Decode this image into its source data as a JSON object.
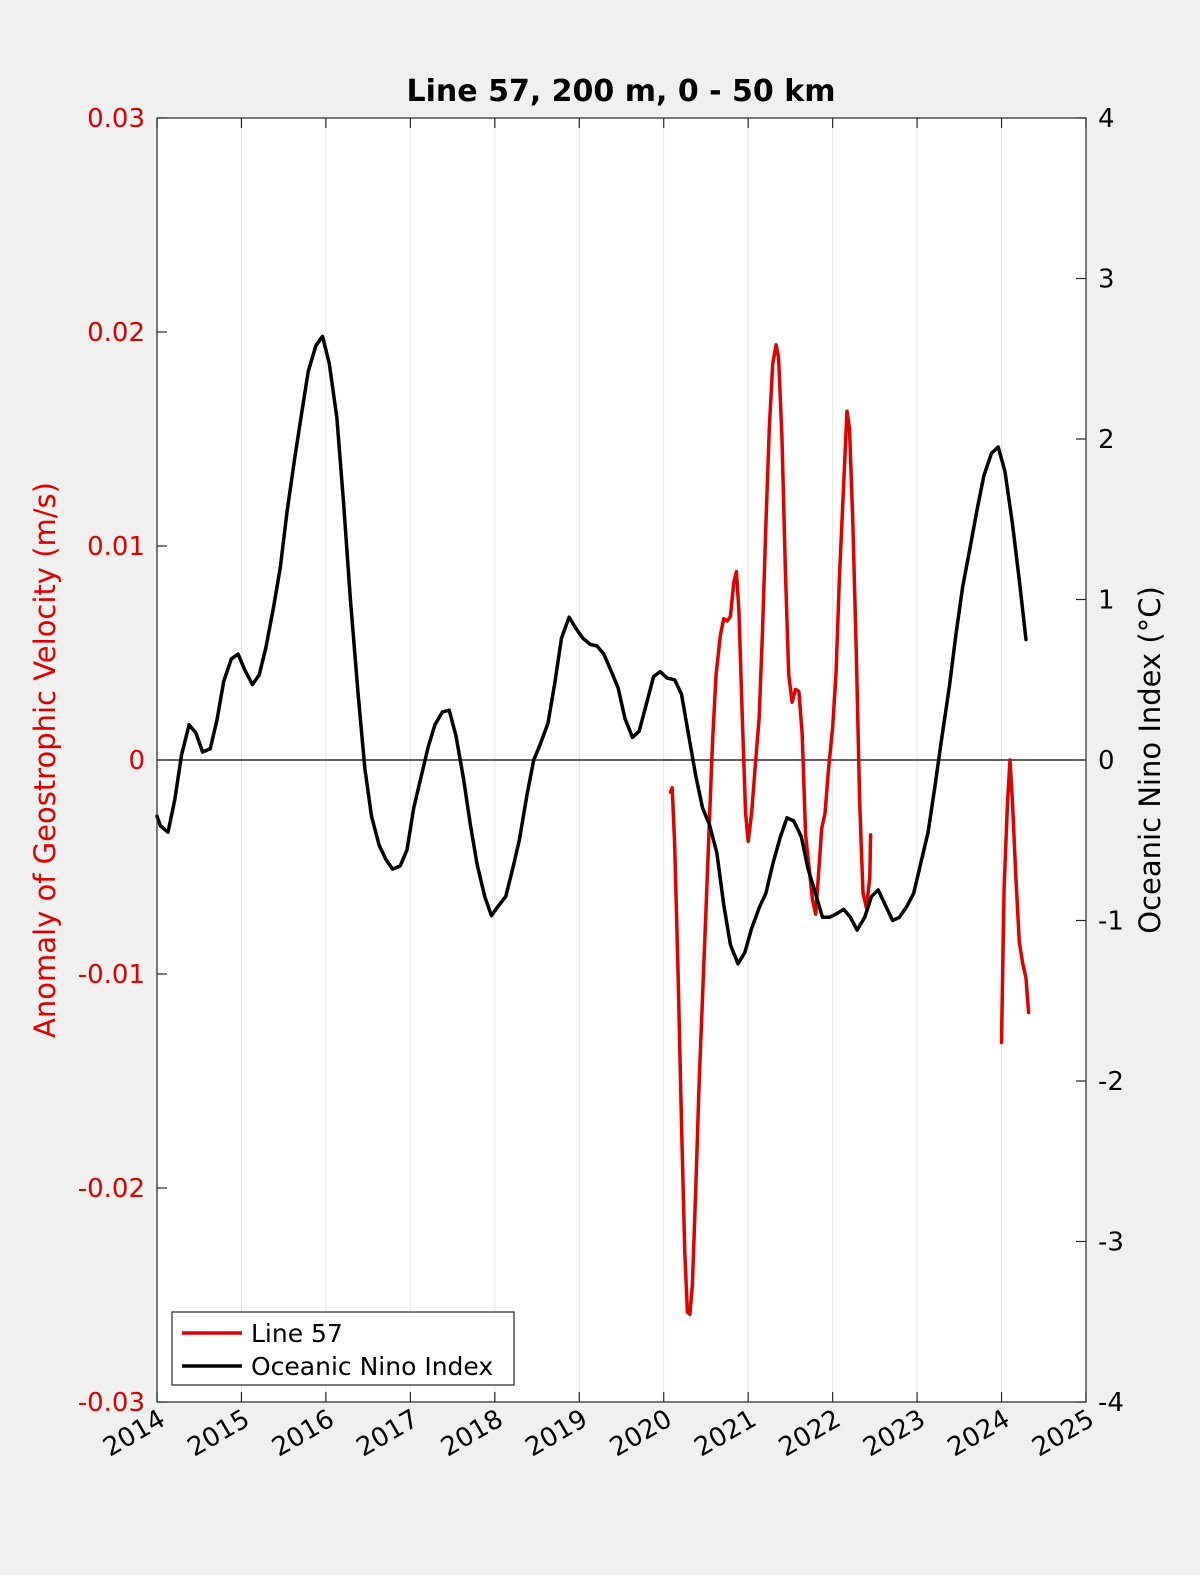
{
  "chart_data": {
    "type": "line",
    "title": "Line 57, 200 m, 0 - 50 km",
    "ylabel_left": "Anomaly of Geostrophic Velocity (m/s)",
    "ylabel_right": "Oceanic Nino Index (°C)",
    "xlim": [
      2014,
      2025
    ],
    "ylim_left": [
      -0.03,
      0.03
    ],
    "ylim_right": [
      -4,
      4
    ],
    "x_ticks": [
      "2014",
      "2015",
      "2016",
      "2017",
      "2018",
      "2019",
      "2020",
      "2021",
      "2022",
      "2023",
      "2024",
      "2025"
    ],
    "y_left_ticks": [
      "0.03",
      "0.02",
      "0.01",
      "0",
      "-0.01",
      "-0.02",
      "-0.03"
    ],
    "y_right_ticks": [
      "4",
      "3",
      "2",
      "1",
      "0",
      "-1",
      "-2",
      "-3",
      "-4"
    ],
    "grid": "vertical",
    "zero_line": true,
    "legend_position": "bottom-left",
    "colors": {
      "line57": "#e00000",
      "oni": "#000000",
      "left_axis": "#e00000",
      "right_axis": "#000000"
    },
    "series": [
      {
        "name": "Line 57",
        "axis": "left",
        "segments": [
          [
            [
              2020.08,
              -0.0015
            ],
            [
              2020.1,
              -0.0013
            ],
            [
              2020.13,
              -0.004
            ],
            [
              2020.17,
              -0.01
            ],
            [
              2020.21,
              -0.017
            ],
            [
              2020.25,
              -0.023
            ],
            [
              2020.28,
              -0.0258
            ],
            [
              2020.31,
              -0.0259
            ],
            [
              2020.34,
              -0.0245
            ],
            [
              2020.38,
              -0.02
            ],
            [
              2020.42,
              -0.015
            ],
            [
              2020.46,
              -0.011
            ],
            [
              2020.5,
              -0.007
            ],
            [
              2020.54,
              -0.003
            ],
            [
              2020.58,
              0.001
            ],
            [
              2020.62,
              0.004
            ],
            [
              2020.67,
              0.0058
            ],
            [
              2020.71,
              0.0066
            ],
            [
              2020.75,
              0.0065
            ],
            [
              2020.79,
              0.0067
            ],
            [
              2020.83,
              0.0083
            ],
            [
              2020.86,
              0.0088
            ],
            [
              2020.89,
              0.007
            ],
            [
              2020.93,
              0.002
            ],
            [
              2020.97,
              -0.0025
            ],
            [
              2021.0,
              -0.0038
            ],
            [
              2021.04,
              -0.0025
            ],
            [
              2021.08,
              -0.0005
            ],
            [
              2021.13,
              0.002
            ],
            [
              2021.17,
              0.006
            ],
            [
              2021.21,
              0.011
            ],
            [
              2021.25,
              0.0155
            ],
            [
              2021.29,
              0.0185
            ],
            [
              2021.33,
              0.0194
            ],
            [
              2021.36,
              0.0188
            ],
            [
              2021.4,
              0.015
            ],
            [
              2021.44,
              0.009
            ],
            [
              2021.48,
              0.004
            ],
            [
              2021.52,
              0.0027
            ],
            [
              2021.56,
              0.0033
            ],
            [
              2021.6,
              0.0032
            ],
            [
              2021.64,
              0.0012
            ],
            [
              2021.68,
              -0.0035
            ],
            [
              2021.72,
              -0.005
            ],
            [
              2021.76,
              -0.0065
            ],
            [
              2021.8,
              -0.0072
            ],
            [
              2021.83,
              -0.0055
            ],
            [
              2021.87,
              -0.0032
            ],
            [
              2021.91,
              -0.0025
            ],
            [
              2021.95,
              -0.0005
            ],
            [
              2022.0,
              0.0015
            ],
            [
              2022.04,
              0.004
            ],
            [
              2022.08,
              0.0085
            ],
            [
              2022.13,
              0.0128
            ],
            [
              2022.17,
              0.0163
            ],
            [
              2022.2,
              0.0155
            ],
            [
              2022.24,
              0.011
            ],
            [
              2022.28,
              0.005
            ],
            [
              2022.32,
              -0.002
            ],
            [
              2022.36,
              -0.0062
            ],
            [
              2022.4,
              -0.0069
            ],
            [
              2022.44,
              -0.0055
            ],
            [
              2022.45,
              -0.0035
            ]
          ],
          [
            [
              2024.0,
              -0.0132
            ],
            [
              2024.03,
              -0.006
            ],
            [
              2024.07,
              -0.002
            ],
            [
              2024.1,
              0.0
            ],
            [
              2024.13,
              -0.002
            ],
            [
              2024.17,
              -0.0055
            ],
            [
              2024.21,
              -0.0085
            ],
            [
              2024.25,
              -0.0095
            ],
            [
              2024.29,
              -0.0102
            ],
            [
              2024.32,
              -0.0118
            ]
          ]
        ]
      },
      {
        "name": "Oceanic Nino Index",
        "axis": "right",
        "segments": [
          [
            [
              2014.0,
              -0.35
            ],
            [
              2014.04,
              -0.41
            ],
            [
              2014.13,
              -0.45
            ],
            [
              2014.21,
              -0.25
            ],
            [
              2014.29,
              0.03
            ],
            [
              2014.38,
              0.22
            ],
            [
              2014.46,
              0.17
            ],
            [
              2014.54,
              0.05
            ],
            [
              2014.63,
              0.07
            ],
            [
              2014.71,
              0.25
            ],
            [
              2014.79,
              0.49
            ],
            [
              2014.88,
              0.63
            ],
            [
              2014.96,
              0.66
            ],
            [
              2015.04,
              0.56
            ],
            [
              2015.13,
              0.47
            ],
            [
              2015.21,
              0.53
            ],
            [
              2015.29,
              0.7
            ],
            [
              2015.38,
              0.95
            ],
            [
              2015.46,
              1.2
            ],
            [
              2015.54,
              1.55
            ],
            [
              2015.63,
              1.88
            ],
            [
              2015.71,
              2.15
            ],
            [
              2015.79,
              2.42
            ],
            [
              2015.88,
              2.58
            ],
            [
              2015.96,
              2.64
            ],
            [
              2016.04,
              2.47
            ],
            [
              2016.13,
              2.13
            ],
            [
              2016.21,
              1.6
            ],
            [
              2016.29,
              1.0
            ],
            [
              2016.38,
              0.42
            ],
            [
              2016.46,
              -0.05
            ],
            [
              2016.54,
              -0.35
            ],
            [
              2016.63,
              -0.53
            ],
            [
              2016.71,
              -0.62
            ],
            [
              2016.79,
              -0.68
            ],
            [
              2016.88,
              -0.66
            ],
            [
              2016.96,
              -0.56
            ],
            [
              2017.04,
              -0.3
            ],
            [
              2017.13,
              -0.1
            ],
            [
              2017.21,
              0.08
            ],
            [
              2017.29,
              0.22
            ],
            [
              2017.38,
              0.3
            ],
            [
              2017.46,
              0.31
            ],
            [
              2017.54,
              0.15
            ],
            [
              2017.63,
              -0.12
            ],
            [
              2017.71,
              -0.4
            ],
            [
              2017.79,
              -0.65
            ],
            [
              2017.88,
              -0.85
            ],
            [
              2017.96,
              -0.97
            ],
            [
              2018.04,
              -0.91
            ],
            [
              2018.13,
              -0.85
            ],
            [
              2018.21,
              -0.68
            ],
            [
              2018.29,
              -0.5
            ],
            [
              2018.38,
              -0.22
            ],
            [
              2018.46,
              0.0
            ],
            [
              2018.54,
              0.1
            ],
            [
              2018.63,
              0.23
            ],
            [
              2018.71,
              0.48
            ],
            [
              2018.79,
              0.76
            ],
            [
              2018.88,
              0.89
            ],
            [
              2018.96,
              0.82
            ],
            [
              2019.04,
              0.76
            ],
            [
              2019.13,
              0.72
            ],
            [
              2019.21,
              0.71
            ],
            [
              2019.29,
              0.66
            ],
            [
              2019.38,
              0.55
            ],
            [
              2019.46,
              0.45
            ],
            [
              2019.54,
              0.26
            ],
            [
              2019.63,
              0.14
            ],
            [
              2019.71,
              0.18
            ],
            [
              2019.79,
              0.34
            ],
            [
              2019.88,
              0.52
            ],
            [
              2019.96,
              0.55
            ],
            [
              2020.04,
              0.51
            ],
            [
              2020.13,
              0.5
            ],
            [
              2020.21,
              0.41
            ],
            [
              2020.29,
              0.17
            ],
            [
              2020.38,
              -0.1
            ],
            [
              2020.46,
              -0.3
            ],
            [
              2020.54,
              -0.4
            ],
            [
              2020.63,
              -0.58
            ],
            [
              2020.71,
              -0.9
            ],
            [
              2020.79,
              -1.15
            ],
            [
              2020.88,
              -1.27
            ],
            [
              2020.96,
              -1.2
            ],
            [
              2021.04,
              -1.05
            ],
            [
              2021.13,
              -0.92
            ],
            [
              2021.21,
              -0.83
            ],
            [
              2021.29,
              -0.65
            ],
            [
              2021.38,
              -0.48
            ],
            [
              2021.46,
              -0.36
            ],
            [
              2021.54,
              -0.38
            ],
            [
              2021.63,
              -0.48
            ],
            [
              2021.71,
              -0.68
            ],
            [
              2021.79,
              -0.82
            ],
            [
              2021.88,
              -0.98
            ],
            [
              2021.96,
              -0.98
            ],
            [
              2022.04,
              -0.96
            ],
            [
              2022.13,
              -0.93
            ],
            [
              2022.21,
              -0.98
            ],
            [
              2022.29,
              -1.06
            ],
            [
              2022.38,
              -0.98
            ],
            [
              2022.46,
              -0.85
            ],
            [
              2022.54,
              -0.81
            ],
            [
              2022.63,
              -0.91
            ],
            [
              2022.71,
              -1.0
            ],
            [
              2022.79,
              -0.98
            ],
            [
              2022.88,
              -0.91
            ],
            [
              2022.96,
              -0.83
            ],
            [
              2023.04,
              -0.65
            ],
            [
              2023.13,
              -0.45
            ],
            [
              2023.21,
              -0.17
            ],
            [
              2023.29,
              0.13
            ],
            [
              2023.38,
              0.45
            ],
            [
              2023.46,
              0.78
            ],
            [
              2023.54,
              1.08
            ],
            [
              2023.63,
              1.33
            ],
            [
              2023.71,
              1.56
            ],
            [
              2023.79,
              1.77
            ],
            [
              2023.88,
              1.91
            ],
            [
              2023.96,
              1.95
            ],
            [
              2024.04,
              1.8
            ],
            [
              2024.13,
              1.47
            ],
            [
              2024.21,
              1.12
            ],
            [
              2024.29,
              0.75
            ]
          ]
        ]
      }
    ]
  }
}
